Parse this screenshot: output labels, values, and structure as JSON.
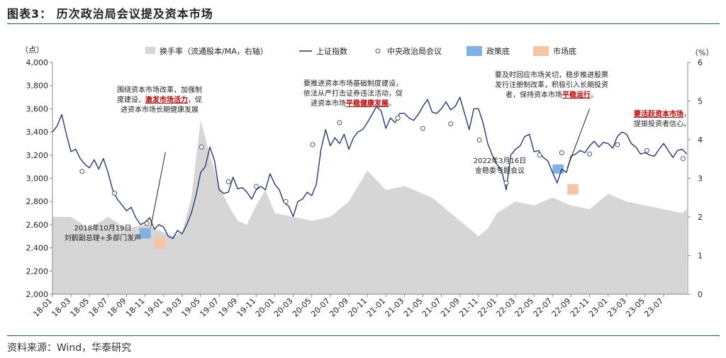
{
  "figure": {
    "title": "图表3： 历次政治局会议提及资本市场",
    "source": "资料来源：Wind，华泰研究"
  },
  "colors": {
    "index_line": "#1f3a7a",
    "turnover_area": "#d6d6d6",
    "policy_bottom": "#7fb2e5",
    "market_bottom": "#f5c6a5",
    "highlight_text": "#c00000"
  },
  "chart_data": {
    "type": "line",
    "left_axis_unit": "（点）",
    "right_axis_unit": "（%）",
    "left_ylim": [
      2000,
      4000
    ],
    "left_ticks": [
      2000,
      2200,
      2400,
      2600,
      2800,
      3000,
      3200,
      3400,
      3600,
      3800,
      4000
    ],
    "left_tick_labels": [
      "2,000",
      "2,200",
      "2,400",
      "2,600",
      "2,800",
      "3,000",
      "3,200",
      "3,400",
      "3,600",
      "3,800",
      "4,000"
    ],
    "right_ylim": [
      0,
      6
    ],
    "right_ticks": [
      0,
      1,
      2,
      3,
      4,
      5,
      6
    ],
    "x_tick_labels": [
      "18-01",
      "18-03",
      "18-05",
      "18-07",
      "18-09",
      "18-11",
      "19-01",
      "19-03",
      "19-05",
      "19-07",
      "19-09",
      "19-11",
      "20-01",
      "20-03",
      "20-05",
      "20-07",
      "20-09",
      "20-11",
      "21-01",
      "21-03",
      "21-05",
      "21-07",
      "21-09",
      "21-11",
      "22-01",
      "22-03",
      "22-05",
      "22-07",
      "22-09",
      "22-11",
      "23-01",
      "23-03",
      "23-05",
      "23-07"
    ],
    "legend": [
      {
        "label": "换手率（流通股本/MA，右轴）",
        "kind": "area"
      },
      {
        "label": "上证指数",
        "kind": "line"
      },
      {
        "label": "中央政治局会议",
        "kind": "marker"
      },
      {
        "label": "政策底",
        "kind": "policy"
      },
      {
        "label": "市场底",
        "kind": "market"
      }
    ],
    "series": [
      {
        "name": "上证指数",
        "axis": "left",
        "x": [
          0,
          0.5,
          1,
          1.5,
          2,
          2.5,
          3,
          3.5,
          4,
          4.5,
          5,
          5.5,
          6,
          6.5,
          7,
          7.5,
          8,
          8.5,
          9,
          9.5,
          10,
          10.5,
          11,
          11.5,
          12,
          12.5,
          13,
          13.5,
          14,
          14.5,
          15,
          15.5,
          16,
          16.5,
          17,
          17.5,
          18,
          18.5,
          19,
          19.5,
          20,
          20.5,
          21,
          21.5,
          22,
          22.5,
          23,
          23.5,
          24,
          24.5,
          25,
          25.5,
          26,
          26.5,
          27,
          27.5,
          28,
          28.5,
          29,
          29.5,
          30,
          30.5,
          31,
          31.5,
          32,
          32.5,
          33,
          33.5,
          34,
          34.5,
          35,
          35.5,
          36,
          36.5,
          37,
          37.5,
          38,
          38.5,
          39,
          39.5,
          40,
          40.5,
          41,
          41.5,
          42,
          42.5,
          43,
          43.5,
          44,
          44.5,
          45,
          45.5,
          46,
          46.5,
          47,
          47.5,
          48,
          48.5,
          49,
          49.5,
          50,
          50.5,
          51,
          51.5,
          52,
          52.5,
          53,
          53.5,
          54,
          54.5,
          55,
          55.5,
          56,
          56.5,
          57,
          57.5,
          58,
          58.5,
          59,
          59.5,
          60,
          60.5,
          61,
          61.5,
          62,
          62.5,
          63,
          63.5,
          64,
          64.5,
          65,
          65.5,
          66,
          66.5,
          67,
          67.5,
          68,
          68.5
        ],
        "values": [
          3400,
          3450,
          3550,
          3380,
          3230,
          3250,
          3170,
          3120,
          3090,
          3160,
          3080,
          3170,
          3050,
          2900,
          2820,
          2770,
          2720,
          2750,
          2660,
          2600,
          2620,
          2660,
          2560,
          2600,
          2580,
          2500,
          2480,
          2550,
          2520,
          2600,
          2700,
          2850,
          3050,
          3100,
          3270,
          3150,
          2900,
          2870,
          2880,
          3010,
          2910,
          2920,
          2880,
          2820,
          2900,
          2930,
          2900,
          3040,
          2950,
          2900,
          2790,
          2760,
          2670,
          2800,
          2820,
          2880,
          2850,
          2950,
          3250,
          3420,
          3280,
          3350,
          3300,
          3380,
          3250,
          3350,
          3400,
          3420,
          3480,
          3550,
          3620,
          3580,
          3430,
          3520,
          3480,
          3560,
          3560,
          3520,
          3500,
          3550,
          3620,
          3680,
          3570,
          3560,
          3600,
          3660,
          3590,
          3620,
          3700,
          3560,
          3420,
          3600,
          3600,
          3480,
          3300,
          3200,
          3120,
          3070,
          2900,
          3200,
          3250,
          3280,
          3360,
          3380,
          3230,
          3240,
          3180,
          3150,
          3050,
          2960,
          3080,
          3050,
          3190,
          3210,
          3240,
          3220,
          3280,
          3320,
          3270,
          3310,
          3300,
          3260,
          3360,
          3400,
          3380,
          3300,
          3270,
          3210,
          3220,
          3200,
          3190,
          3250,
          3300,
          3240,
          3180,
          3240,
          3250,
          3210
        ]
      },
      {
        "name": "换手率（流通股本/MA，右轴）",
        "axis": "right",
        "x": [
          0,
          2,
          4,
          6,
          8,
          10,
          12,
          13,
          14,
          15,
          16,
          17,
          18,
          19,
          20,
          21,
          22,
          23,
          24,
          26,
          28,
          30,
          32,
          34,
          36,
          38,
          40,
          41,
          42,
          43,
          44,
          45,
          46,
          47,
          48,
          50,
          52,
          54,
          56,
          58,
          60,
          62,
          64,
          66,
          68,
          68.5
        ],
        "values": [
          2.0,
          2.0,
          1.7,
          2.0,
          1.7,
          1.8,
          1.6,
          1.5,
          1.6,
          2.5,
          4.5,
          3.6,
          2.8,
          2.3,
          1.9,
          1.8,
          2.3,
          2.7,
          2.1,
          2.0,
          1.9,
          2.0,
          2.4,
          3.2,
          2.7,
          2.8,
          2.6,
          2.5,
          2.3,
          2.1,
          1.9,
          1.7,
          1.5,
          1.7,
          2.1,
          2.4,
          2.3,
          2.5,
          2.3,
          2.2,
          2.6,
          2.4,
          2.3,
          2.2,
          2.1,
          2.2
        ]
      }
    ],
    "meetings": [
      {
        "x": 3.2,
        "y": 3060
      },
      {
        "x": 6.7,
        "y": 2870
      },
      {
        "x": 10.2,
        "y": 2610
      },
      {
        "x": 16.1,
        "y": 3270
      },
      {
        "x": 19.0,
        "y": 2970
      },
      {
        "x": 22.0,
        "y": 2930
      },
      {
        "x": 25.2,
        "y": 2800
      },
      {
        "x": 28.1,
        "y": 3290
      },
      {
        "x": 31.0,
        "y": 3480
      },
      {
        "x": 37.3,
        "y": 3520
      },
      {
        "x": 40.0,
        "y": 3430
      },
      {
        "x": 43.0,
        "y": 3470
      },
      {
        "x": 46.1,
        "y": 3330
      },
      {
        "x": 49.0,
        "y": 2960
      },
      {
        "x": 52.6,
        "y": 3200
      },
      {
        "x": 55.0,
        "y": 3220
      },
      {
        "x": 58.0,
        "y": 3210
      },
      {
        "x": 61.0,
        "y": 3290
      },
      {
        "x": 64.2,
        "y": 3240
      },
      {
        "x": 68.1,
        "y": 3170
      }
    ],
    "policy_bottoms": [
      {
        "x0": 9.4,
        "x1": 10.6,
        "y0": 2480,
        "y1": 2570
      },
      {
        "x0": 54.0,
        "x1": 55.2,
        "y0": 3040,
        "y1": 3120
      }
    ],
    "market_bottoms": [
      {
        "x0": 11.0,
        "x1": 12.2,
        "y0": 2390,
        "y1": 2490
      },
      {
        "x0": 55.6,
        "x1": 56.8,
        "y0": 2860,
        "y1": 2950
      }
    ],
    "annotations": [
      {
        "x": 10.6,
        "y": 2575,
        "x2": 12.2,
        "y2": 3225
      },
      {
        "x": 55.6,
        "y": 3090,
        "x2": 58.0,
        "y2": 3600
      }
    ]
  },
  "notes": {
    "n1": {
      "lines": [
        [
          "围绕资本市场改革，加强制"
        ],
        [
          "度建设，",
          "激发市场活力",
          "，促"
        ],
        [
          "进资本市场长期健康发展"
        ]
      ]
    },
    "n2": {
      "lines": [
        [
          "2018年10月19日"
        ],
        [
          "刘鹤副总理+多部门发声"
        ]
      ]
    },
    "n3": {
      "lines": [
        [
          "要推进资本市场基础制度建设，"
        ],
        [
          "依法从严打击证券违法活动，促"
        ],
        [
          "进资本市场",
          "平稳健康发展",
          "。"
        ]
      ]
    },
    "n4": {
      "lines": [
        [
          "要及时回应市场关切，稳步推进股票"
        ],
        [
          "发行注册制改革，积极引入长期投资"
        ],
        [
          "者，保持资本市场",
          "平稳运行",
          "。"
        ]
      ]
    },
    "n5": {
      "lines": [
        [
          "2022年3月16日"
        ],
        [
          "金稳委专题会议"
        ]
      ]
    },
    "n6": {
      "lines": [
        [
          "要活跃资本市场",
          "，"
        ],
        [
          "提振投资者信心。"
        ]
      ]
    }
  }
}
